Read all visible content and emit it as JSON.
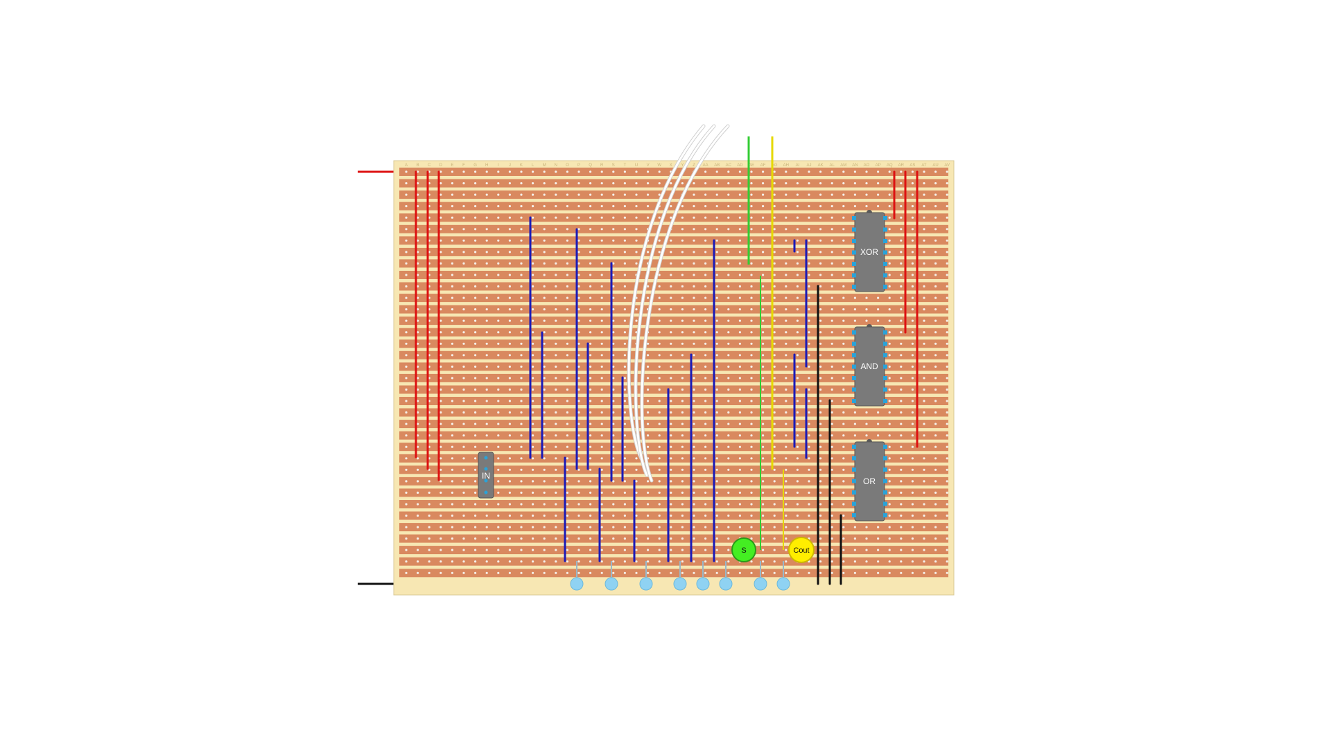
{
  "board": {
    "column_labels": [
      "A",
      "B",
      "C",
      "D",
      "E",
      "F",
      "G",
      "H",
      "I",
      "J",
      "K",
      "L",
      "M",
      "N",
      "O",
      "P",
      "Q",
      "R",
      "S",
      "T",
      "U",
      "V",
      "W",
      "X",
      "Y",
      "Z",
      "AA",
      "AB",
      "AC",
      "AD",
      "AE",
      "AF",
      "AG",
      "AH",
      "AI",
      "AJ",
      "AK",
      "AL",
      "AM",
      "AN",
      "AO",
      "AP",
      "AQ",
      "AR",
      "AS",
      "AT",
      "AU",
      "AV"
    ],
    "row_count": 36,
    "colors": {
      "board": "#f7e7b3",
      "strip": "#d9895f",
      "hole": "#f5f0ea",
      "power": "#dd1111",
      "ground": "#111111",
      "signal": "#1a1ab8",
      "chip": "#7a7a7a",
      "pin": "#29a3d9",
      "input_pad": "#8fd2f2",
      "sum_wire": "#33cc33",
      "carry_wire": "#e6d800",
      "jumper": "#ffffff"
    }
  },
  "chips": [
    {
      "id": "input-switch",
      "label": "IN"
    },
    {
      "id": "xor-gate",
      "label": "XOR"
    },
    {
      "id": "and-gate",
      "label": "AND"
    },
    {
      "id": "or-gate",
      "label": "OR"
    }
  ],
  "leds": [
    {
      "id": "sum-led",
      "label": "S",
      "color": "#44ee22"
    },
    {
      "id": "carry-led",
      "label": "Cout",
      "color": "#ffee00"
    }
  ]
}
